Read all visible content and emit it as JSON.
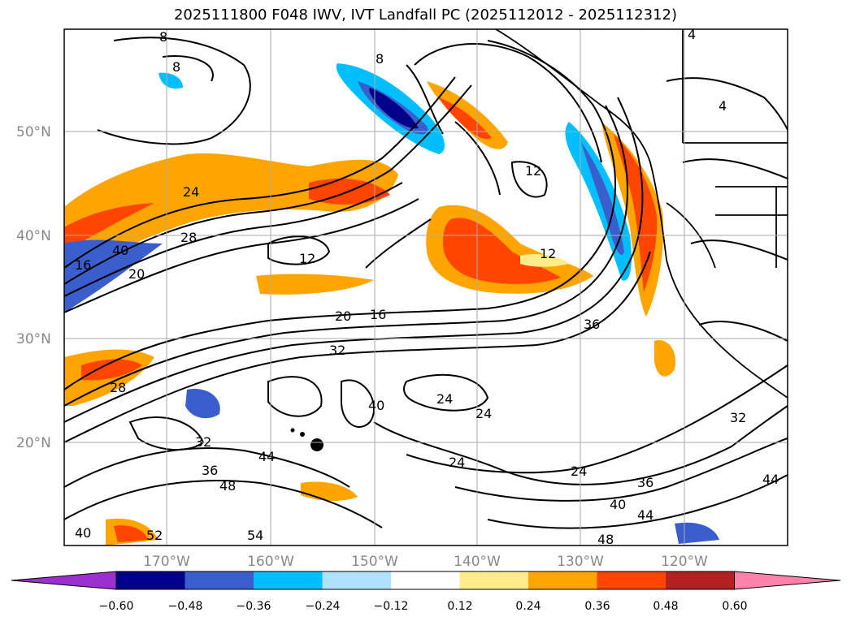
{
  "title": "2025111800 F048 IWV, IVT Landfall PC (2025112012 - 2025112312)",
  "map": {
    "lat_ticks": [
      "50°N",
      "40°N",
      "30°N",
      "20°N"
    ],
    "lon_ticks": [
      "170°W",
      "160°W",
      "150°W",
      "140°W",
      "130°W",
      "120°W"
    ],
    "gridlines": true,
    "contour_labels": [
      "8",
      "8",
      "8",
      "4",
      "4",
      "24",
      "28",
      "12",
      "40",
      "16",
      "20",
      "20",
      "16",
      "12",
      "12",
      "36",
      "32",
      "28",
      "40",
      "24",
      "24",
      "32",
      "44",
      "36",
      "48",
      "24",
      "24",
      "36",
      "40",
      "44",
      "48",
      "32",
      "44",
      "40",
      "52",
      "54"
    ]
  },
  "colorbar": {
    "ticks": [
      "−0.60",
      "−0.48",
      "−0.36",
      "−0.24",
      "−0.12",
      "0.12",
      "0.24",
      "0.36",
      "0.48",
      "0.60"
    ],
    "colors": [
      "#9b30d0",
      "#00008b",
      "#3a5fcd",
      "#00bfff",
      "#b0e2ff",
      "#ffffff",
      "#ffec8b",
      "#ffa500",
      "#ff4500",
      "#b22222",
      "#ff82ab"
    ]
  }
}
